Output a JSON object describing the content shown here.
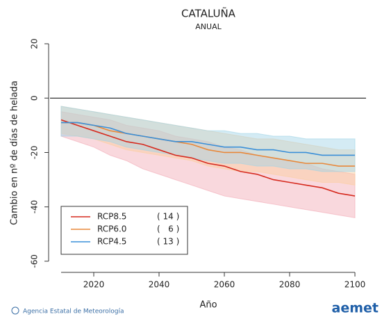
{
  "chart_data": {
    "type": "line",
    "title": "CATALUÑA",
    "subtitle": "ANUAL",
    "xlabel": "Año",
    "ylabel": "Cambio en nº de días de helada",
    "x": [
      2010,
      2015,
      2020,
      2025,
      2030,
      2035,
      2040,
      2045,
      2050,
      2055,
      2060,
      2065,
      2070,
      2075,
      2080,
      2085,
      2090,
      2095,
      2100
    ],
    "xlim": [
      2006.6,
      2103.4
    ],
    "xticks": [
      2020,
      2040,
      2060,
      2080,
      2100
    ],
    "ylim": [
      -64.1,
      24.6
    ],
    "yticks": [
      -60,
      -40,
      -20,
      0,
      20
    ],
    "zero_line": true,
    "legend": "lower left",
    "series": [
      {
        "name": "RCP8.5",
        "runs_label": "( 14 )",
        "color": "#d62a1e",
        "band_color": "#f2a9b4",
        "values": [
          -8,
          -10,
          -12,
          -14,
          -16,
          -17,
          -19,
          -21,
          -22,
          -24,
          -25,
          -27,
          -28,
          -30,
          -31,
          -32,
          -33,
          -35,
          -36
        ],
        "lower": [
          -14,
          -16,
          -18,
          -21,
          -23,
          -26,
          -28,
          -30,
          -32,
          -34,
          -36,
          -37,
          -38,
          -39,
          -40,
          -41,
          -42,
          -43,
          -44
        ],
        "upper": [
          -5,
          -6,
          -7,
          -8,
          -10,
          -11,
          -12,
          -14,
          -15,
          -16,
          -18,
          -19,
          -21,
          -22,
          -23,
          -24,
          -26,
          -27,
          -28
        ]
      },
      {
        "name": "RCP6.0",
        "runs_label": "(   6 )",
        "color": "#e8883a",
        "band_color": "#fbcf9e",
        "values": [
          -9,
          -9,
          -10,
          -12,
          -13,
          -14,
          -15,
          -16,
          -17,
          -19,
          -20,
          -20,
          -21,
          -22,
          -23,
          -24,
          -24,
          -25,
          -25
        ],
        "lower": [
          -13,
          -14,
          -15,
          -17,
          -19,
          -20,
          -21,
          -22,
          -23,
          -25,
          -26,
          -27,
          -27,
          -28,
          -29,
          -30,
          -31,
          -31,
          -32
        ],
        "upper": [
          -3,
          -4,
          -5,
          -6,
          -7,
          -8,
          -9,
          -10,
          -11,
          -12,
          -13,
          -14,
          -15,
          -15,
          -16,
          -17,
          -18,
          -19,
          -19
        ]
      },
      {
        "name": "RCP4.5",
        "runs_label": "( 13 )",
        "color": "#3a8fd8",
        "band_color": "#9fd3e6",
        "values": [
          -9,
          -9,
          -10,
          -11,
          -13,
          -14,
          -15,
          -16,
          -16,
          -17,
          -18,
          -18,
          -19,
          -19,
          -20,
          -20,
          -21,
          -21,
          -21
        ],
        "lower": [
          -14,
          -14,
          -15,
          -16,
          -18,
          -19,
          -20,
          -21,
          -22,
          -23,
          -24,
          -24,
          -25,
          -25,
          -26,
          -26,
          -27,
          -27,
          -27
        ],
        "upper": [
          -3,
          -4,
          -5,
          -6,
          -7,
          -8,
          -9,
          -10,
          -11,
          -12,
          -12,
          -13,
          -13,
          -14,
          -14,
          -15,
          -15,
          -15,
          -15
        ]
      }
    ]
  },
  "footer": {
    "agency": "Agencia Estatal de Meteorología",
    "logo": "aemet"
  }
}
